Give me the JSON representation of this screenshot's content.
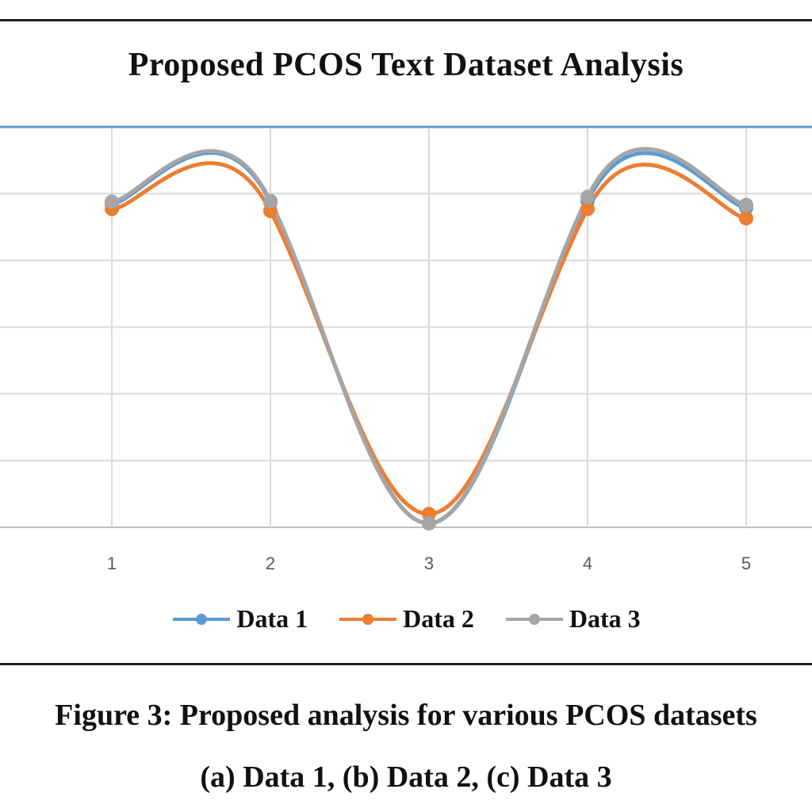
{
  "chart_data": {
    "type": "line",
    "title": "Proposed PCOS Text Dataset Analysis",
    "xlabel": "",
    "ylabel": "",
    "categories": [
      "1",
      "2",
      "3",
      "4",
      "5"
    ],
    "series": [
      {
        "name": "Data 1",
        "color": "#5B9BD5",
        "values": [
          4.85,
          4.87,
          0.06,
          4.89,
          4.79
        ]
      },
      {
        "name": "Data 2",
        "color": "#ED7D31",
        "values": [
          4.77,
          4.74,
          0.2,
          4.77,
          4.63
        ]
      },
      {
        "name": "Data 3",
        "color": "#A5A5A5",
        "values": [
          4.88,
          4.89,
          0.06,
          4.95,
          4.83
        ]
      }
    ],
    "ylim": [
      0,
      6
    ],
    "y_tick_labels_visible": false,
    "grid": true,
    "smoothed": true,
    "legend_position": "bottom"
  },
  "figure": {
    "title": "Proposed PCOS Text Dataset Analysis",
    "caption_line1": "Figure 3: Proposed analysis for various PCOS datasets",
    "caption_line2": "(a) Data 1, (b) Data 2, (c) Data 3"
  },
  "legend": [
    {
      "label": "Data 1",
      "color": "#5B9BD5"
    },
    {
      "label": "Data 2",
      "color": "#ED7D31"
    },
    {
      "label": "Data 3",
      "color": "#A5A5A5"
    }
  ]
}
